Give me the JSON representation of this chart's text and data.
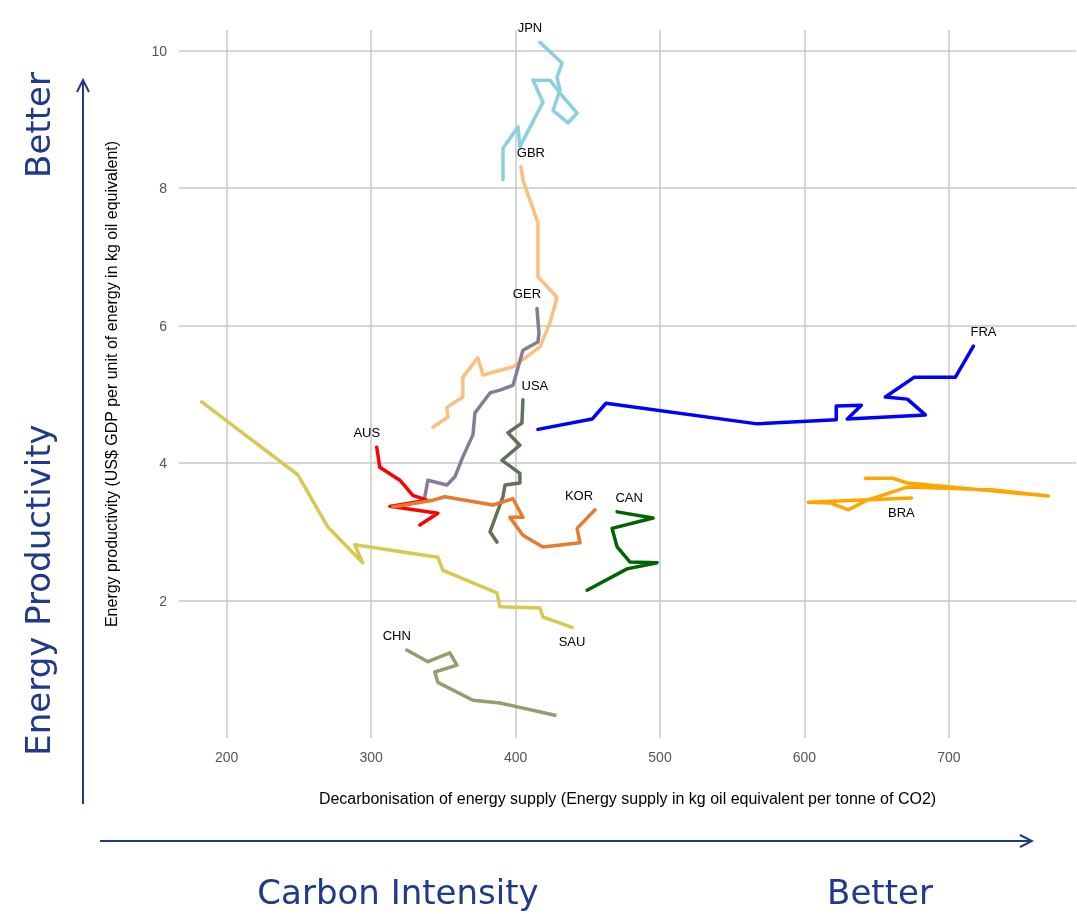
{
  "chart_data": {
    "type": "line",
    "xlabel": "Decarbonisation of energy supply (Energy supply in kg oil equivalent per tonne of CO2)",
    "ylabel": "Energy productivity (US$ GDP per unit of energy in kg oil equivalent)",
    "xlim": [
      167,
      788
    ],
    "ylim": [
      0,
      10.3
    ],
    "xticks": [
      200,
      300,
      400,
      500,
      600,
      700
    ],
    "yticks": [
      2,
      4,
      6,
      8,
      10
    ],
    "grid": true,
    "legend": false,
    "marker": "none",
    "line_style": "solid",
    "annotations": [
      "Better",
      "Energy Productivity",
      "Carbon Intensity",
      "Better"
    ],
    "series": [
      {
        "name": "JPN",
        "color": "#8ccfe0",
        "x": [
          391.3,
          391.3,
          401.7,
          403.0,
          419.0,
          412.1,
          423.8,
          430.8,
          442.6,
          436.3,
          425.9,
          430.8,
          428.7,
          432.2,
          416.9
        ],
        "values": [
          8.12,
          8.58,
          8.89,
          8.6,
          9.25,
          9.57,
          9.57,
          9.38,
          9.09,
          8.95,
          9.13,
          9.43,
          9.61,
          9.82,
          10.12
        ]
      },
      {
        "name": "GBR",
        "color": "#fbbf7e",
        "x": [
          342.8,
          353.2,
          352.5,
          363.5,
          363.5,
          373.9,
          377.4,
          398.2,
          416.9,
          423.8,
          428.7,
          415.5,
          415.5,
          405.1,
          403.7
        ],
        "values": [
          4.52,
          4.67,
          4.81,
          4.96,
          5.25,
          5.53,
          5.28,
          5.4,
          5.69,
          6.04,
          6.41,
          6.71,
          7.49,
          8.12,
          8.31
        ]
      },
      {
        "name": "GER",
        "color": "#857c96",
        "x": [
          337.2,
          339.3,
          352.5,
          358.0,
          363.5,
          370.5,
          371.9,
          382.3,
          389.2,
          398.2,
          405.1,
          415.5,
          416.2,
          414.8
        ],
        "values": [
          3.51,
          3.75,
          3.68,
          3.8,
          4.09,
          4.41,
          4.73,
          5.02,
          5.06,
          5.13,
          5.64,
          5.76,
          5.89,
          6.25
        ]
      },
      {
        "name": "USA",
        "color": "#5f7358",
        "x": [
          387.1,
          382.3,
          391.3,
          392.7,
          403.0,
          403.0,
          390.6,
          403.0,
          394.7,
          404.4,
          405.1
        ],
        "values": [
          2.85,
          3.0,
          3.51,
          3.68,
          3.71,
          3.85,
          4.04,
          4.26,
          4.44,
          4.58,
          4.92
        ]
      },
      {
        "name": "FRA",
        "color": "#0000ff",
        "x": [
          415.5,
          453.0,
          462.6,
          567.3,
          622.0,
          622.0,
          639.4,
          629.7,
          683.7,
          671.3,
          656.0,
          676.1,
          704.5,
          717.0
        ],
        "values": [
          4.49,
          4.64,
          4.87,
          4.57,
          4.63,
          4.83,
          4.84,
          4.64,
          4.7,
          4.93,
          4.96,
          5.25,
          5.25,
          5.7
        ]
      },
      {
        "name": "BRA",
        "color": "#ffa500",
        "x": [
          642.1,
          660.8,
          671.2,
          768.9,
          729.5,
          671.2,
          643.5,
          630.4,
          617.9,
          602.6,
          674.0
        ],
        "values": [
          3.78,
          3.78,
          3.71,
          3.52,
          3.61,
          3.65,
          3.46,
          3.32,
          3.42,
          3.43,
          3.49
        ]
      },
      {
        "name": "AUS",
        "color": "#ff0000",
        "x": [
          333.7,
          346.2,
          313.0,
          338.6,
          328.9,
          319.9,
          306.0,
          303.9
        ],
        "values": [
          3.1,
          3.27,
          3.37,
          3.46,
          3.53,
          3.75,
          3.94,
          4.23
        ]
      },
      {
        "name": "KOR",
        "color": "#e8792f",
        "x": [
          315.0,
          342.8,
          351.1,
          384.3,
          398.2,
          405.1,
          396.1,
          405.1,
          418.9,
          444.6,
          442.6,
          455.0
        ],
        "values": [
          3.36,
          3.46,
          3.51,
          3.39,
          3.48,
          3.21,
          3.21,
          2.95,
          2.78,
          2.84,
          3.05,
          3.32
        ]
      },
      {
        "name": "CAN",
        "color": "#006400",
        "x": [
          449.5,
          477.2,
          498.0,
          479.3,
          470.3,
          466.8,
          495.2,
          470.3
        ],
        "values": [
          2.15,
          2.46,
          2.55,
          2.56,
          2.78,
          3.05,
          3.2,
          3.29
        ]
      },
      {
        "name": "SAU",
        "color": "#d7c84f",
        "x": [
          182.7,
          249.2,
          270.0,
          294.2,
          288.7,
          346.2,
          349.7,
          387.1,
          389.2,
          416.9,
          419.0,
          439.1
        ],
        "values": [
          4.89,
          3.83,
          3.07,
          2.55,
          2.81,
          2.63,
          2.44,
          2.11,
          1.91,
          1.89,
          1.76,
          1.61
        ]
      },
      {
        "name": "CHN",
        "color": "#8fa06b",
        "x": [
          427.3,
          389.2,
          370.5,
          346.2,
          344.1,
          359.4,
          354.5,
          339.3,
          324.7
        ],
        "values": [
          0.33,
          0.51,
          0.55,
          0.81,
          0.96,
          1.06,
          1.24,
          1.11,
          1.28
        ]
      }
    ]
  }
}
